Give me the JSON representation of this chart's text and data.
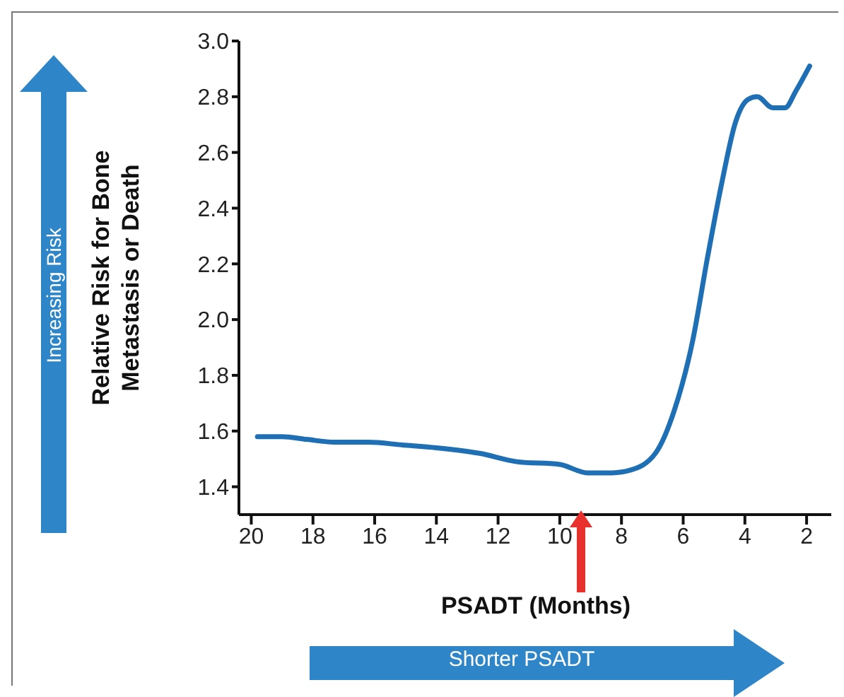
{
  "chart_data": {
    "type": "line",
    "xlabel": "PSADT (Months)",
    "ylabel": "Relative Risk for Bone Metastasis or Death",
    "annotations": [
      "Increasing Risk",
      "Shorter PSADT"
    ],
    "x": [
      19.8,
      19.0,
      18.2,
      17.3,
      16.2,
      15.1,
      14.0,
      12.6,
      11.4,
      10.0,
      9.1,
      8.3,
      7.7,
      6.9,
      6.3,
      5.7,
      5.2,
      4.75,
      4.3,
      3.9,
      3.6,
      3.1,
      2.7,
      2.35,
      1.9
    ],
    "series": [
      {
        "color": "#1f6fb5",
        "values": [
          1.58,
          1.58,
          1.57,
          1.56,
          1.56,
          1.55,
          1.54,
          1.52,
          1.49,
          1.48,
          1.45,
          1.45,
          1.46,
          1.52,
          1.67,
          1.92,
          2.23,
          2.49,
          2.71,
          2.79,
          2.8,
          2.76,
          2.76,
          2.82,
          2.91
        ]
      }
    ],
    "xlim": [
      20.4,
      1.2
    ],
    "xticks": [
      20,
      18,
      16,
      14,
      12,
      10,
      8,
      6,
      4,
      2
    ],
    "ylim": [
      1.3,
      3.0
    ],
    "yticks": [
      {
        "value": 1.4,
        "label": "1.4"
      },
      {
        "value": 1.6,
        "label": "1.6"
      },
      {
        "value": 1.8,
        "label": "1.8"
      },
      {
        "value": 2.0,
        "label": "2.0"
      },
      {
        "value": 2.2,
        "label": "2.2"
      },
      {
        "value": 2.4,
        "label": "2.4"
      },
      {
        "value": 2.6,
        "label": "2.6"
      },
      {
        "value": 2.8,
        "label": "2.8"
      },
      {
        "value": 3.0,
        "label": "3.0"
      }
    ],
    "grid": false,
    "legend": false,
    "marker": "none",
    "line_style": "solid"
  }
}
